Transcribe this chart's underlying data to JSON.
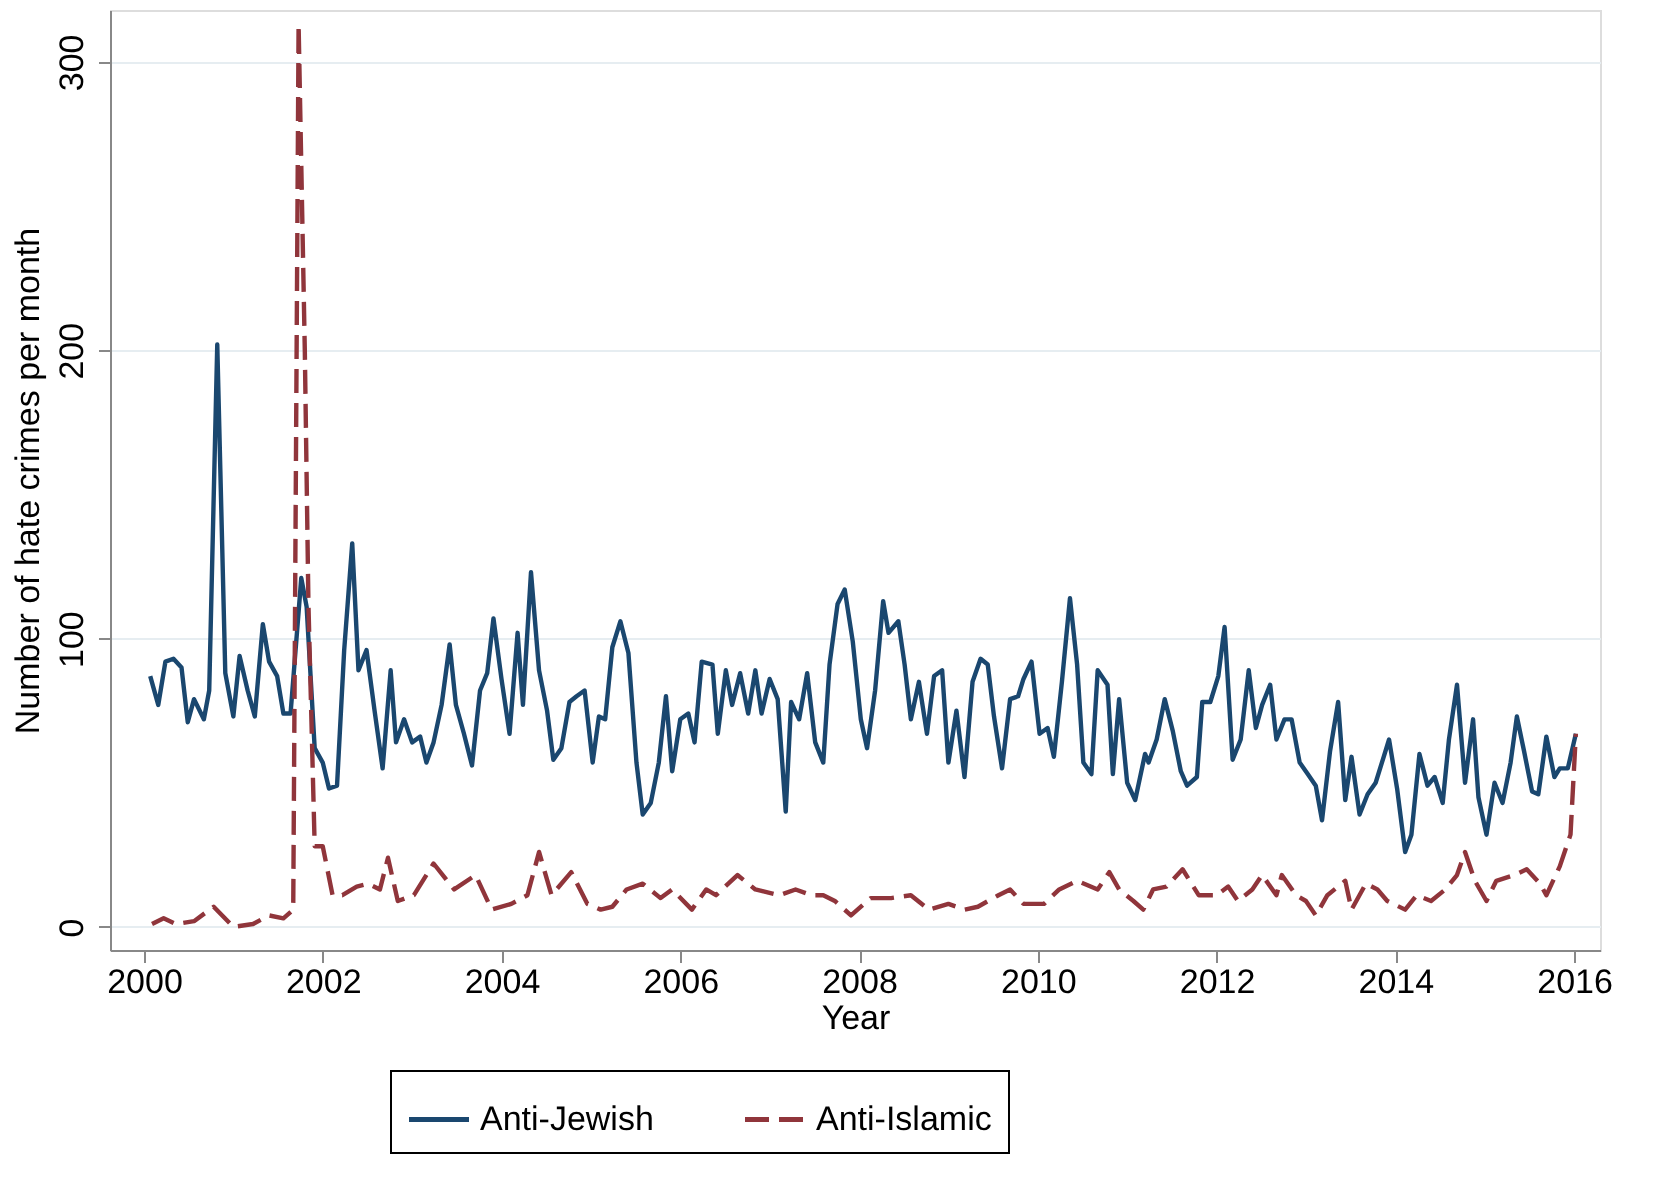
{
  "chart_data": {
    "type": "line",
    "xlabel": "Year",
    "ylabel": "Number of hate crimes per month",
    "xlim": [
      1999.62,
      2016.29
    ],
    "xticks": [
      2000,
      2002,
      2004,
      2006,
      2008,
      2010,
      2012,
      2014,
      2016
    ],
    "ylim": [
      -8,
      318
    ],
    "yticks": [
      0,
      100,
      200,
      300
    ],
    "grid": "y",
    "legend": "bottom",
    "series": [
      {
        "name": "Anti-Jewish",
        "color": "#1a476f",
        "line_style": "solid",
        "x": [
          2000.07,
          2000.16,
          2000.24,
          2000.33,
          2000.42,
          2000.49,
          2000.56,
          2000.67,
          2000.73,
          2000.82,
          2000.91,
          2001.0,
          2001.07,
          2001.16,
          2001.24,
          2001.33,
          2001.4,
          2001.49,
          2001.56,
          2001.64,
          2001.76,
          2001.82,
          2001.91,
          2002.0,
          2002.07,
          2002.16,
          2002.24,
          2002.33,
          2002.4,
          2002.49,
          2002.58,
          2002.67,
          2002.76,
          2002.82,
          2002.91,
          2003.0,
          2003.09,
          2003.16,
          2003.24,
          2003.33,
          2003.42,
          2003.49,
          2003.58,
          2003.67,
          2003.76,
          2003.84,
          2003.91,
          2004.0,
          2004.09,
          2004.18,
          2004.24,
          2004.33,
          2004.42,
          2004.51,
          2004.58,
          2004.67,
          2004.76,
          2004.84,
          2004.93,
          2005.02,
          2005.09,
          2005.16,
          2005.24,
          2005.33,
          2005.42,
          2005.51,
          2005.58,
          2005.67,
          2005.76,
          2005.84,
          2005.91,
          2006.0,
          2006.09,
          2006.16,
          2006.24,
          2006.36,
          2006.42,
          2006.51,
          2006.58,
          2006.67,
          2006.76,
          2006.84,
          2006.91,
          2007.0,
          2007.09,
          2007.18,
          2007.24,
          2007.33,
          2007.42,
          2007.51,
          2007.6,
          2007.67,
          2007.76,
          2007.84,
          2007.93,
          2008.02,
          2008.09,
          2008.18,
          2008.27,
          2008.33,
          2008.44,
          2008.51,
          2008.58,
          2008.67,
          2008.76,
          2008.84,
          2008.93,
          2009.0,
          2009.09,
          2009.18,
          2009.27,
          2009.36,
          2009.44,
          2009.51,
          2009.6,
          2009.69,
          2009.78,
          2009.84,
          2009.93,
          2010.02,
          2010.11,
          2010.18,
          2010.27,
          2010.36,
          2010.44,
          2010.51,
          2010.6,
          2010.67,
          2010.78,
          2010.84,
          2010.91,
          2011.0,
          2011.09,
          2011.2,
          2011.24,
          2011.33,
          2011.42,
          2011.51,
          2011.6,
          2011.67,
          2011.78,
          2011.84,
          2011.93,
          2012.02,
          2012.09,
          2012.18,
          2012.27,
          2012.36,
          2012.44,
          2012.51,
          2012.6,
          2012.67,
          2012.76,
          2012.84,
          2012.93,
          2013.02,
          2013.11,
          2013.18,
          2013.27,
          2013.36,
          2013.44,
          2013.51,
          2013.6,
          2013.69,
          2013.78,
          2013.87,
          2013.93,
          2014.02,
          2014.11,
          2014.18,
          2014.27,
          2014.36,
          2014.44,
          2014.53,
          2014.6,
          2014.69,
          2014.78,
          2014.87,
          2014.93,
          2015.02,
          2015.11,
          2015.2,
          2015.29,
          2015.36,
          2015.44,
          2015.53,
          2015.6,
          2015.69,
          2015.78,
          2015.84,
          2015.93,
          2016.02
        ],
        "values": [
          87,
          77,
          92,
          93,
          90,
          71,
          79,
          72,
          82,
          202,
          88,
          73,
          94,
          82,
          73,
          105,
          92,
          87,
          74,
          74,
          121,
          111,
          62,
          57,
          48,
          49,
          96,
          133,
          89,
          96,
          75,
          55,
          89,
          64,
          72,
          64,
          66,
          57,
          64,
          77,
          98,
          77,
          67,
          56,
          82,
          88,
          107,
          86,
          67,
          102,
          77,
          123,
          89,
          75,
          58,
          62,
          78,
          80,
          82,
          57,
          73,
          72,
          97,
          106,
          95,
          57,
          39,
          43,
          57,
          80,
          54,
          72,
          74,
          64,
          92,
          91,
          67,
          89,
          77,
          88,
          74,
          89,
          74,
          86,
          79,
          40,
          78,
          72,
          88,
          64,
          57,
          91,
          112,
          117,
          99,
          72,
          62,
          82,
          113,
          102,
          106,
          91,
          72,
          85,
          67,
          87,
          89,
          57,
          75,
          52,
          85,
          93,
          91,
          73,
          55,
          79,
          80,
          86,
          92,
          67,
          69,
          59,
          85,
          114,
          91,
          57,
          53,
          89,
          84,
          53,
          79,
          50,
          44,
          60,
          57,
          65,
          79,
          68,
          54,
          49,
          52,
          78,
          78,
          87,
          104,
          58,
          65,
          89,
          69,
          77,
          84,
          65,
          72,
          72,
          57,
          53,
          49,
          37,
          61,
          78,
          44,
          59,
          39,
          46,
          50,
          59,
          65,
          48,
          26,
          32,
          60,
          49,
          52,
          43,
          65,
          84,
          50,
          72,
          45,
          32,
          50,
          43,
          57,
          73,
          61,
          47,
          46,
          66,
          52,
          55,
          55,
          67
        ]
      },
      {
        "name": "Anti-Islamic",
        "color": "#90353b",
        "line_style": "dashed",
        "x": [
          2000.09,
          2000.22,
          2000.36,
          2000.56,
          2000.78,
          2001.0,
          2001.22,
          2001.4,
          2001.56,
          2001.67,
          2001.73,
          2001.8,
          2001.84,
          2001.91,
          2002.0,
          2002.11,
          2002.22,
          2002.38,
          2002.51,
          2002.64,
          2002.73,
          2002.84,
          2003.02,
          2003.24,
          2003.47,
          2003.71,
          2003.89,
          2004.11,
          2004.29,
          2004.42,
          2004.56,
          2004.78,
          2004.96,
          2005.11,
          2005.24,
          2005.4,
          2005.58,
          2005.78,
          2005.91,
          2006.13,
          2006.29,
          2006.4,
          2006.64,
          2006.84,
          2007.11,
          2007.29,
          2007.47,
          2007.6,
          2007.73,
          2007.91,
          2008.13,
          2008.36,
          2008.58,
          2008.78,
          2009.0,
          2009.18,
          2009.33,
          2009.56,
          2009.69,
          2009.84,
          2010.07,
          2010.24,
          2010.44,
          2010.67,
          2010.8,
          2010.91,
          2011.07,
          2011.18,
          2011.29,
          2011.44,
          2011.62,
          2011.8,
          2012.0,
          2012.13,
          2012.24,
          2012.4,
          2012.51,
          2012.67,
          2012.73,
          2012.89,
          2013.0,
          2013.11,
          2013.24,
          2013.44,
          2013.51,
          2013.67,
          2013.8,
          2013.91,
          2014.11,
          2014.24,
          2014.4,
          2014.56,
          2014.69,
          2014.78,
          2014.89,
          2015.02,
          2015.13,
          2015.33,
          2015.47,
          2015.62,
          2015.69,
          2015.84,
          2015.96,
          2016.02
        ],
        "values": [
          1,
          3,
          1,
          2,
          7,
          0,
          1,
          4,
          3,
          6,
          313,
          199,
          112,
          28,
          28,
          11,
          11,
          14,
          15,
          13,
          24,
          9,
          11,
          22,
          13,
          18,
          6,
          8,
          11,
          26,
          11,
          19,
          8,
          6,
          7,
          13,
          15,
          10,
          13,
          6,
          13,
          11,
          18,
          13,
          11,
          13,
          11,
          11,
          9,
          4,
          10,
          10,
          11,
          6,
          8,
          6,
          7,
          11,
          13,
          8,
          8,
          13,
          16,
          13,
          19,
          13,
          9,
          6,
          13,
          14,
          20,
          11,
          11,
          14,
          9,
          13,
          18,
          11,
          18,
          11,
          9,
          4,
          11,
          16,
          6,
          15,
          13,
          9,
          6,
          11,
          9,
          13,
          18,
          26,
          16,
          9,
          16,
          18,
          20,
          15,
          11,
          21,
          32,
          67
        ]
      }
    ]
  }
}
